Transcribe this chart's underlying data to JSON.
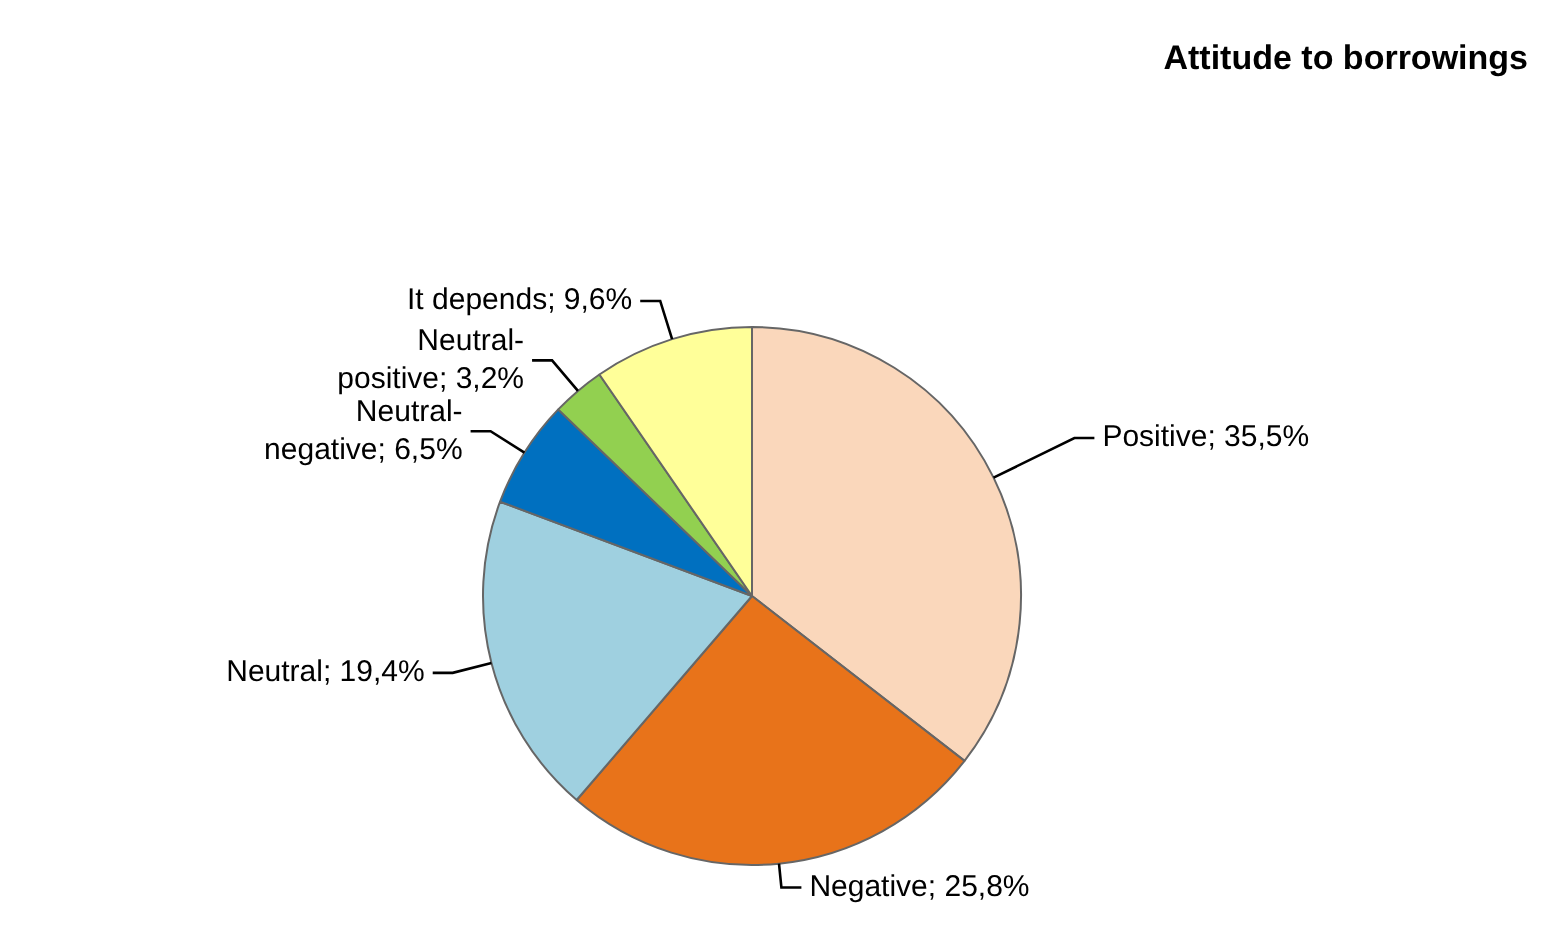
{
  "chart_data": {
    "type": "pie",
    "title": "Attitude to borrowings",
    "categories": [
      "Positive",
      "Negative",
      "Neutral",
      "Neutral-negative",
      "Neutral-positive",
      "It depends"
    ],
    "values": [
      35.5,
      25.8,
      19.4,
      6.5,
      3.2,
      9.6
    ],
    "value_labels": [
      "35,5%",
      "25,8%",
      "19,4%",
      "6,5%",
      "3,2%",
      "9,6%"
    ],
    "colors": [
      "#fad7bb",
      "#e8731a",
      "#9fd0e0",
      "#0070c0",
      "#92d050",
      "#ffff99"
    ],
    "legend": false
  }
}
